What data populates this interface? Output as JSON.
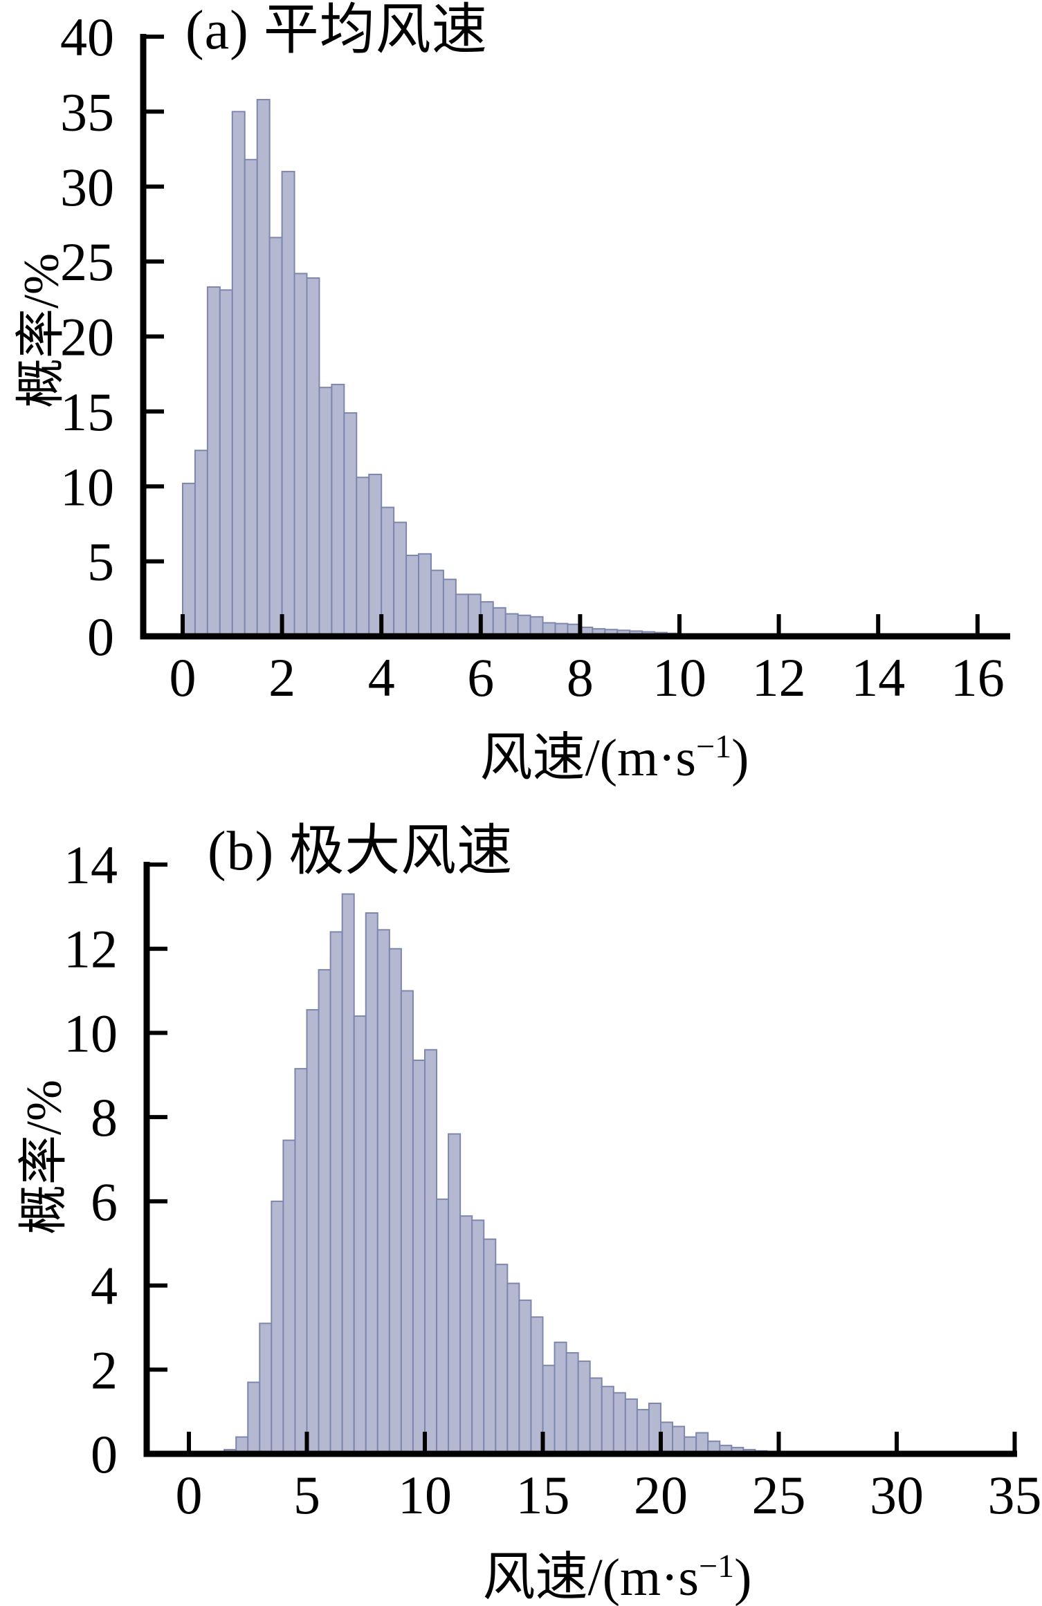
{
  "page": {
    "background": "#ffffff",
    "description": "Two stacked wind-speed probability histograms"
  },
  "chart_data": [
    {
      "type": "bar",
      "title": "(a) 平均风速",
      "ylabel": "概率/%",
      "xlabel": "风速/(m·s−1)",
      "xlabel_main": "风速/(m·s",
      "xlabel_sup": "−1",
      "xlabel_close": ")",
      "xlim": [
        0,
        16
      ],
      "ylim": [
        0,
        40
      ],
      "x_ticks": [
        0,
        2,
        4,
        6,
        8,
        10,
        12,
        14,
        16
      ],
      "y_ticks": [
        0,
        5,
        10,
        15,
        20,
        25,
        30,
        35,
        40
      ],
      "grid": false,
      "legend_position": "none",
      "bin_start": 0,
      "bin_width": 0.25,
      "values": [
        10.2,
        12.4,
        23.3,
        23.1,
        35.0,
        31.8,
        35.8,
        26.6,
        31.0,
        24.2,
        23.9,
        16.6,
        16.8,
        14.9,
        10.6,
        10.8,
        8.6,
        7.6,
        5.4,
        5.5,
        4.4,
        3.8,
        2.8,
        2.8,
        2.3,
        1.9,
        1.5,
        1.4,
        1.3,
        0.9,
        0.85,
        0.8,
        0.6,
        0.5,
        0.45,
        0.4,
        0.35,
        0.3,
        0.25,
        0.2,
        0.15,
        0.1,
        0.08,
        0.05,
        0.03,
        0,
        0,
        0,
        0,
        0,
        0,
        0.1,
        0,
        0.12,
        0,
        0
      ],
      "bar_fill": "#b4b8d0",
      "bar_stroke": "#7d87ae",
      "axis_color": "#000000"
    },
    {
      "type": "bar",
      "title": "(b) 极大风速",
      "ylabel": "概率/%",
      "xlabel": "风速/(m·s−1)",
      "xlabel_main": "风速/(m·s",
      "xlabel_sup": "−1",
      "xlabel_close": ")",
      "xlim": [
        0,
        35
      ],
      "ylim": [
        0,
        14
      ],
      "x_ticks": [
        0,
        5,
        10,
        15,
        20,
        25,
        30,
        35
      ],
      "y_ticks": [
        0,
        2,
        4,
        6,
        8,
        10,
        12,
        14
      ],
      "grid": false,
      "legend_position": "none",
      "bin_start": 0.5,
      "bin_width": 0.5,
      "values": [
        0.03,
        0.05,
        0.1,
        0.4,
        1.7,
        3.1,
        6.0,
        7.45,
        9.15,
        10.55,
        11.5,
        12.4,
        13.3,
        10.4,
        12.85,
        12.45,
        12.0,
        11.0,
        9.35,
        9.6,
        6.05,
        7.6,
        5.65,
        5.55,
        5.1,
        4.5,
        4.05,
        3.65,
        3.25,
        2.1,
        2.65,
        2.4,
        2.2,
        1.8,
        1.6,
        1.45,
        1.3,
        1.05,
        1.2,
        0.75,
        0.65,
        0.4,
        0.5,
        0.3,
        0.2,
        0.15,
        0.1,
        0.07,
        0.05
      ],
      "bar_fill": "#b4b8d0",
      "bar_stroke": "#7d87ae",
      "axis_color": "#000000"
    }
  ]
}
